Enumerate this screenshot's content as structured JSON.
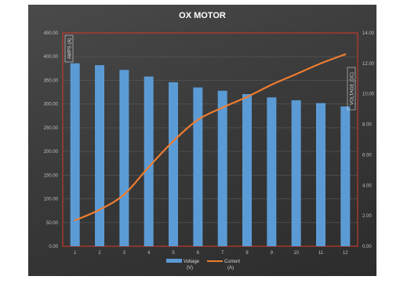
{
  "chart_data": {
    "type": "bar",
    "title": "OX MOTOR",
    "categories": [
      "1",
      "2",
      "3",
      "4",
      "5",
      "6",
      "7",
      "8",
      "9",
      "10",
      "11",
      "12"
    ],
    "y_left": {
      "label": "AMPS (A)",
      "range": [
        0,
        450
      ],
      "ticks": [
        "0.00",
        "50.00",
        "100.00",
        "150.00",
        "200.00",
        "250.00",
        "300.00",
        "350.00",
        "400.00",
        "450.00"
      ]
    },
    "y_right": {
      "label": "VOLTAGE (DC)",
      "range": [
        0,
        14
      ],
      "ticks": [
        "0.00",
        "2.00",
        "4.00",
        "6.00",
        "8.00",
        "10.00",
        "12.00",
        "14.00"
      ]
    },
    "grid": true,
    "legend_position": "bottom",
    "series": [
      {
        "name": "Voltage (V)",
        "legend_line1": "Voltage",
        "legend_line2": "(V)",
        "type": "bar",
        "axis": "left",
        "color": "#5b9bd5",
        "values": [
          386,
          382,
          372,
          358,
          346,
          335,
          328,
          321,
          314,
          308,
          302,
          295
        ]
      },
      {
        "name": "Current (A)",
        "legend_line1": "Current",
        "legend_line2": "(A)",
        "type": "line",
        "axis": "right",
        "color": "#ed7d31",
        "values": [
          1.7,
          2.4,
          3.4,
          5.2,
          6.9,
          8.3,
          9.1,
          9.8,
          10.6,
          11.3,
          12.0,
          12.6
        ]
      }
    ]
  }
}
